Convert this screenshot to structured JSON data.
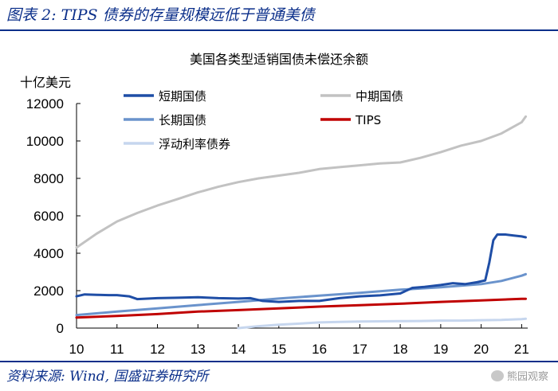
{
  "page": {
    "figure_title": "图表 2:  TIPS 债券的存量规模远低于普通美债",
    "source": "资料来源: Wind, 国盛证券研究所",
    "watermark": "熊园观察"
  },
  "colors": {
    "frame": "#0b2f8a",
    "short": "#1f4ea6",
    "medium": "#c2c2c2",
    "long": "#6a93cc",
    "tips": "#c00000",
    "frn": "#c6d6ee"
  },
  "chart_data": {
    "type": "line",
    "title": "美国各类型适销国债未偿还余额",
    "ylabel": "十亿美元",
    "xlabel": "",
    "ylim": [
      0,
      12000
    ],
    "yticks": [
      0,
      2000,
      4000,
      6000,
      8000,
      10000,
      12000
    ],
    "xlim": [
      10,
      21.15
    ],
    "xticks": [
      10,
      11,
      12,
      13,
      14,
      15,
      16,
      17,
      18,
      19,
      20,
      21
    ],
    "xtick_labels": [
      "10",
      "11",
      "12",
      "13",
      "14",
      "15",
      "16",
      "17",
      "18",
      "19",
      "20",
      "21"
    ],
    "legend": [
      {
        "key": "short",
        "label": "短期国债"
      },
      {
        "key": "medium",
        "label": "中期国债"
      },
      {
        "key": "long",
        "label": "长期国债"
      },
      {
        "key": "tips",
        "label": "TIPS"
      },
      {
        "key": "frn",
        "label": "浮动利率债券"
      }
    ],
    "series": [
      {
        "key": "short",
        "name": "短期国债",
        "x": [
          10,
          10.2,
          10.5,
          10.8,
          11,
          11.3,
          11.5,
          12,
          12.5,
          13,
          13.5,
          14,
          14.3,
          14.6,
          15,
          15.5,
          15.8,
          16,
          16.5,
          17,
          17.5,
          18,
          18.3,
          18.6,
          19,
          19.3,
          19.6,
          19.9,
          20.1,
          20.2,
          20.3,
          20.4,
          20.6,
          20.8,
          21,
          21.1
        ],
        "values": [
          1700,
          1800,
          1780,
          1760,
          1760,
          1700,
          1550,
          1600,
          1620,
          1650,
          1600,
          1580,
          1600,
          1450,
          1400,
          1450,
          1450,
          1450,
          1600,
          1700,
          1750,
          1850,
          2150,
          2200,
          2300,
          2400,
          2350,
          2450,
          2550,
          3500,
          4700,
          5000,
          5000,
          4950,
          4900,
          4850
        ]
      },
      {
        "key": "medium",
        "name": "中期国债",
        "x": [
          10,
          10.5,
          11,
          11.5,
          12,
          12.5,
          13,
          13.5,
          14,
          14.5,
          15,
          15.5,
          16,
          16.5,
          17,
          17.5,
          18,
          18.5,
          19,
          19.5,
          20,
          20.5,
          21,
          21.1
        ],
        "values": [
          4300,
          5050,
          5700,
          6150,
          6550,
          6900,
          7250,
          7550,
          7800,
          8000,
          8150,
          8300,
          8500,
          8600,
          8700,
          8800,
          8850,
          9100,
          9400,
          9750,
          10000,
          10400,
          11000,
          11300
        ]
      },
      {
        "key": "long",
        "name": "长期国债",
        "x": [
          10,
          11,
          12,
          13,
          14,
          15,
          16,
          17,
          18,
          19,
          20,
          20.5,
          21,
          21.1
        ],
        "values": [
          700,
          880,
          1050,
          1230,
          1400,
          1580,
          1730,
          1880,
          2050,
          2180,
          2350,
          2520,
          2800,
          2880
        ]
      },
      {
        "key": "tips",
        "name": "TIPS",
        "x": [
          10,
          11,
          12,
          13,
          14,
          15,
          16,
          17,
          18,
          19,
          20,
          21,
          21.1
        ],
        "values": [
          560,
          650,
          750,
          880,
          960,
          1050,
          1150,
          1220,
          1300,
          1400,
          1480,
          1560,
          1560
        ]
      },
      {
        "key": "frn",
        "name": "浮动利率债券",
        "x": [
          14,
          14.5,
          15,
          15.5,
          16,
          16.5,
          17,
          17.5,
          18,
          18.5,
          19,
          19.5,
          20,
          20.5,
          21,
          21.1
        ],
        "values": [
          0,
          100,
          180,
          240,
          300,
          330,
          350,
          360,
          370,
          380,
          400,
          400,
          420,
          440,
          480,
          500
        ]
      }
    ]
  }
}
